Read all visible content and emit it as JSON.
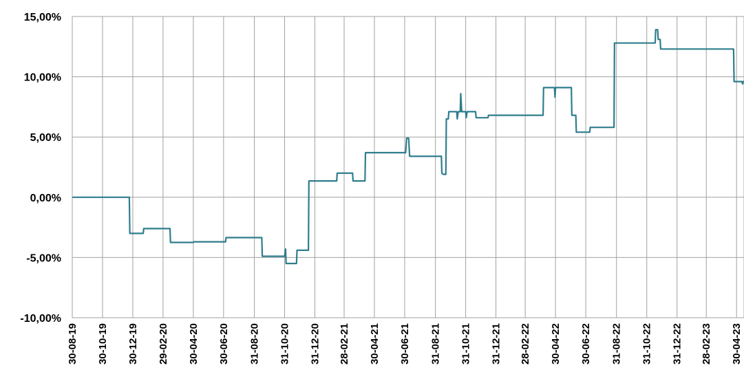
{
  "chart_data": {
    "type": "line",
    "title": "",
    "xlabel": "",
    "ylabel": "",
    "ylim": [
      -10,
      15
    ],
    "y_ticks": [
      {
        "value": 15,
        "label": "15,00%"
      },
      {
        "value": 10,
        "label": "10,00%"
      },
      {
        "value": 5,
        "label": "5,00%"
      },
      {
        "value": 0,
        "label": "0,00%"
      },
      {
        "value": -5,
        "label": "-5,00%"
      },
      {
        "value": -10,
        "label": "-10,00%"
      }
    ],
    "x_range": [
      "2019-08-30",
      "2023-05-15"
    ],
    "x_ticks": [
      {
        "date": "2019-08-30",
        "label": "30-08-19"
      },
      {
        "date": "2019-10-30",
        "label": "30-10-19"
      },
      {
        "date": "2019-12-30",
        "label": "30-12-19"
      },
      {
        "date": "2020-02-29",
        "label": "29-02-20"
      },
      {
        "date": "2020-04-30",
        "label": "30-04-20"
      },
      {
        "date": "2020-06-30",
        "label": "30-06-20"
      },
      {
        "date": "2020-08-31",
        "label": "31-08-20"
      },
      {
        "date": "2020-10-31",
        "label": "31-10-20"
      },
      {
        "date": "2020-12-31",
        "label": "31-12-20"
      },
      {
        "date": "2021-02-28",
        "label": "28-02-21"
      },
      {
        "date": "2021-04-30",
        "label": "30-04-21"
      },
      {
        "date": "2021-06-30",
        "label": "30-06-21"
      },
      {
        "date": "2021-08-31",
        "label": "31-08-21"
      },
      {
        "date": "2021-10-31",
        "label": "31-10-21"
      },
      {
        "date": "2021-12-31",
        "label": "31-12-21"
      },
      {
        "date": "2022-02-28",
        "label": "28-02-22"
      },
      {
        "date": "2022-04-30",
        "label": "30-04-22"
      },
      {
        "date": "2022-06-30",
        "label": "30-06-22"
      },
      {
        "date": "2022-08-31",
        "label": "31-08-22"
      },
      {
        "date": "2022-10-31",
        "label": "31-10-22"
      },
      {
        "date": "2022-12-31",
        "label": "31-12-22"
      },
      {
        "date": "2023-02-28",
        "label": "28-02-23"
      },
      {
        "date": "2023-04-30",
        "label": "30-04-23"
      }
    ],
    "grid": true,
    "legend": "none",
    "colors": {
      "line": "#2e7d8c",
      "grid": "#a0a0a0"
    },
    "series": [
      {
        "points": [
          [
            "2019-08-30",
            0.0
          ],
          [
            "2019-12-23",
            0.0
          ],
          [
            "2019-12-24",
            -3.0
          ],
          [
            "2020-01-20",
            -3.0
          ],
          [
            "2020-01-21",
            -2.6
          ],
          [
            "2020-03-14",
            -2.6
          ],
          [
            "2020-03-15",
            -3.75
          ],
          [
            "2020-04-30",
            -3.75
          ],
          [
            "2020-05-01",
            -3.7
          ],
          [
            "2020-07-04",
            -3.7
          ],
          [
            "2020-07-05",
            -3.35
          ],
          [
            "2020-09-15",
            -3.35
          ],
          [
            "2020-09-16",
            -4.9
          ],
          [
            "2020-10-31",
            -4.9
          ],
          [
            "2020-11-02",
            -4.3
          ],
          [
            "2020-11-03",
            -5.5
          ],
          [
            "2020-11-24",
            -5.5
          ],
          [
            "2020-11-25",
            -4.4
          ],
          [
            "2020-12-18",
            -4.4
          ],
          [
            "2020-12-19",
            1.35
          ],
          [
            "2021-02-13",
            1.35
          ],
          [
            "2021-02-14",
            2.0
          ],
          [
            "2021-03-17",
            2.0
          ],
          [
            "2021-03-18",
            1.35
          ],
          [
            "2021-04-11",
            1.35
          ],
          [
            "2021-04-12",
            3.7
          ],
          [
            "2021-07-02",
            3.7
          ],
          [
            "2021-07-04",
            4.9
          ],
          [
            "2021-07-08",
            4.9
          ],
          [
            "2021-07-10",
            3.4
          ],
          [
            "2021-09-12",
            3.4
          ],
          [
            "2021-09-13",
            2.0
          ],
          [
            "2021-09-16",
            1.9
          ],
          [
            "2021-09-21",
            1.9
          ],
          [
            "2021-09-22",
            6.5
          ],
          [
            "2021-09-26",
            6.5
          ],
          [
            "2021-09-27",
            7.1
          ],
          [
            "2021-10-13",
            7.1
          ],
          [
            "2021-10-14",
            6.5
          ],
          [
            "2021-10-16",
            7.1
          ],
          [
            "2021-10-20",
            7.1
          ],
          [
            "2021-10-21",
            8.6
          ],
          [
            "2021-10-23",
            7.1
          ],
          [
            "2021-10-31",
            7.1
          ],
          [
            "2021-11-01",
            6.6
          ],
          [
            "2021-11-03",
            7.1
          ],
          [
            "2021-11-20",
            7.1
          ],
          [
            "2021-11-21",
            6.6
          ],
          [
            "2021-12-15",
            6.6
          ],
          [
            "2021-12-16",
            6.8
          ],
          [
            "2022-04-05",
            6.8
          ],
          [
            "2022-04-06",
            9.1
          ],
          [
            "2022-04-28",
            9.1
          ],
          [
            "2022-04-29",
            8.3
          ],
          [
            "2022-04-30",
            9.1
          ],
          [
            "2022-06-01",
            9.1
          ],
          [
            "2022-06-02",
            6.8
          ],
          [
            "2022-06-10",
            6.8
          ],
          [
            "2022-06-11",
            5.4
          ],
          [
            "2022-07-08",
            5.4
          ],
          [
            "2022-07-09",
            5.8
          ],
          [
            "2022-08-26",
            5.8
          ],
          [
            "2022-08-27",
            12.8
          ],
          [
            "2022-11-17",
            12.8
          ],
          [
            "2022-11-18",
            13.9
          ],
          [
            "2022-11-22",
            13.9
          ],
          [
            "2022-11-23",
            13.1
          ],
          [
            "2022-11-27",
            13.1
          ],
          [
            "2022-11-28",
            12.3
          ],
          [
            "2023-04-24",
            12.3
          ],
          [
            "2023-04-25",
            9.6
          ],
          [
            "2023-05-11",
            9.6
          ],
          [
            "2023-05-12",
            9.4
          ],
          [
            "2023-05-13",
            9.6
          ],
          [
            "2023-05-15",
            9.6
          ]
        ]
      }
    ]
  }
}
